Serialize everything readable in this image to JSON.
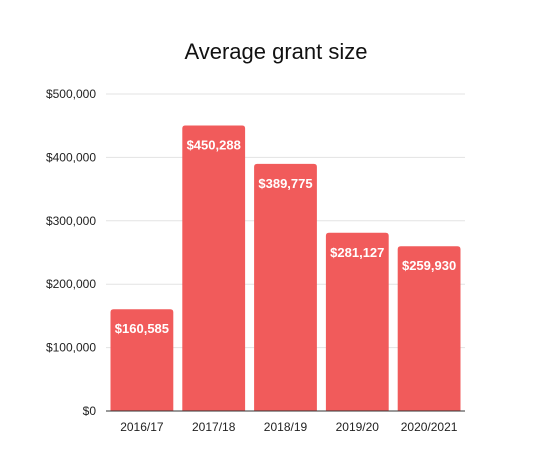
{
  "chart_data": {
    "type": "bar",
    "title": "Average grant size",
    "xlabel": "",
    "ylabel": "",
    "categories": [
      "2016/17",
      "2017/18",
      "2018/19",
      "2019/20",
      "2020/2021"
    ],
    "values": [
      160585,
      450288,
      389775,
      281127,
      259930
    ],
    "value_labels": [
      "$160,585",
      "$450,288",
      "$389,775",
      "$281,127",
      "$259,930"
    ],
    "ylim": [
      0,
      500000
    ],
    "y_ticks": [
      0,
      100000,
      200000,
      300000,
      400000,
      500000
    ],
    "y_tick_labels": [
      "$0",
      "$100,000",
      "$200,000",
      "$300,000",
      "$400,000",
      "$500,000"
    ],
    "grid": true,
    "legend": "none",
    "bar_color": "#f15b5b",
    "label_color": "#ffffff"
  }
}
